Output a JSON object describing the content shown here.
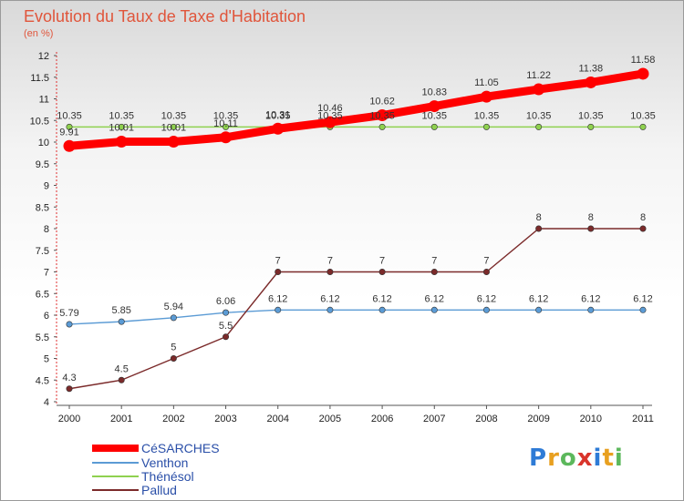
{
  "chart_data": {
    "type": "line",
    "title": "Evolution du Taux de Taxe d'Habitation",
    "subtitle": "(en %)",
    "x": [
      "2000",
      "2001",
      "2002",
      "2003",
      "2004",
      "2005",
      "2006",
      "2007",
      "2008",
      "2009",
      "2010",
      "2011"
    ],
    "ylim": [
      4,
      12
    ],
    "yticks": [
      "4",
      "4.5",
      "5",
      "5.5",
      "6",
      "6.5",
      "7",
      "7.5",
      "8",
      "8.5",
      "9",
      "9.5",
      "10",
      "10.5",
      "11",
      "11.5",
      "12"
    ],
    "grid": false,
    "legend_position": "bottom-left",
    "series": [
      {
        "name": "CéSARCHES",
        "color": "#ff0000",
        "values": [
          9.91,
          10.01,
          10.01,
          10.11,
          10.31,
          10.46,
          10.62,
          10.83,
          11.05,
          11.22,
          11.38,
          11.58
        ],
        "labels": [
          "9.91",
          "10.01",
          "10.01",
          "10.11",
          "10.31",
          "10.46",
          "10.62",
          "10.83",
          "11.05",
          "11.22",
          "11.38",
          "11.58"
        ]
      },
      {
        "name": "Venthon",
        "color": "#5b9bd5",
        "values": [
          5.79,
          5.85,
          5.94,
          6.06,
          6.12,
          6.12,
          6.12,
          6.12,
          6.12,
          6.12,
          6.12,
          6.12
        ],
        "labels": [
          "5.79",
          "5.85",
          "5.94",
          "6.06",
          "6.12",
          "6.12",
          "6.12",
          "6.12",
          "6.12",
          "6.12",
          "6.12",
          "6.12"
        ]
      },
      {
        "name": "Thénésol",
        "color": "#8fd14f",
        "values": [
          10.35,
          10.35,
          10.35,
          10.35,
          10.35,
          10.35,
          10.35,
          10.35,
          10.35,
          10.35,
          10.35,
          10.35
        ],
        "labels": [
          "10.35",
          "10.35",
          "10.35",
          "10.35",
          "10.35",
          "10.35",
          "10.35",
          "10.35",
          "10.35",
          "10.35",
          "10.35",
          "10.35"
        ]
      },
      {
        "name": "Pallud",
        "color": "#7b2a2a",
        "values": [
          4.3,
          4.5,
          5,
          5.5,
          7,
          7,
          7,
          7,
          7,
          8,
          8,
          8
        ],
        "labels": [
          "4.3",
          "4.5",
          "5",
          "5.5",
          "7",
          "7",
          "7",
          "7",
          "7",
          "8",
          "8",
          "8"
        ]
      }
    ]
  },
  "logo": {
    "letters": [
      "P",
      "r",
      "o",
      "x",
      "i",
      "t",
      "i"
    ],
    "colors": [
      "#2e7bd6",
      "#e8a020",
      "#5cb85c",
      "#d9342b",
      "#2e7bd6",
      "#e8a020",
      "#5cb85c"
    ]
  }
}
